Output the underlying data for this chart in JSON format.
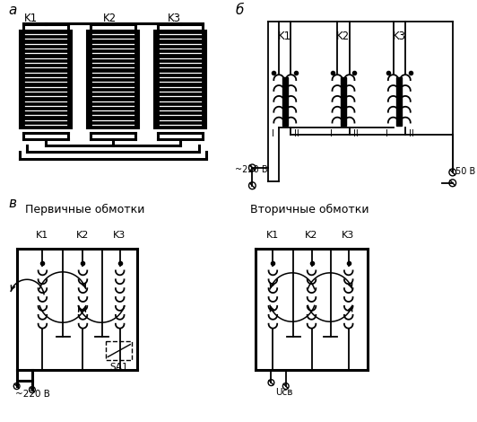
{
  "bg_color": "#ffffff",
  "label_a": "a",
  "label_b": "б",
  "label_v": "в",
  "k_labels": [
    "K1",
    "K2",
    "K3"
  ],
  "primary_title": "Первичные обмотки",
  "secondary_title": "Вторичные обмотки",
  "text_220": "~220 В",
  "text_50": "50 В",
  "text_sa1": "SA1",
  "text_ucv": "Uсв"
}
